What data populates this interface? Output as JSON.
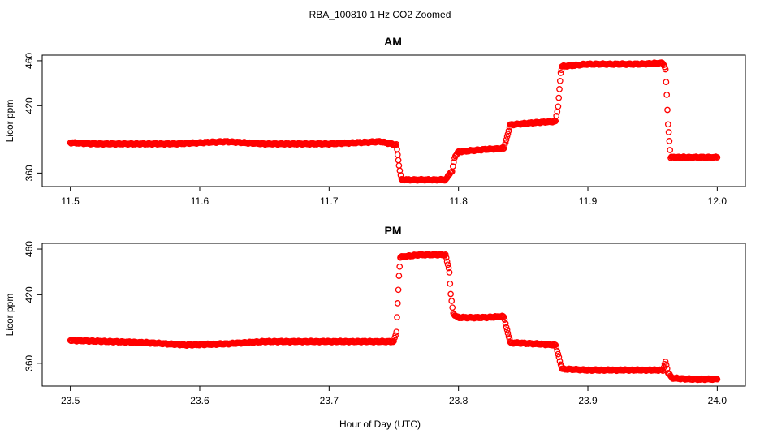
{
  "title": "RBA_100810  1 Hz CO2 Zoomed",
  "xlabel": "Hour of Day (UTC)",
  "colors": {
    "points": "#ff0000",
    "axes": "#000000"
  },
  "chart_data": [
    {
      "type": "scatter",
      "title": "AM",
      "ylabel": "Licor ppm",
      "xlim": [
        11.5,
        12.0
      ],
      "ylim": [
        348,
        465
      ],
      "x_ticks": [
        "11.5",
        "11.6",
        "11.7",
        "11.8",
        "11.9",
        "12.0"
      ],
      "y_ticks": [
        "360",
        "420",
        "460"
      ],
      "series": [
        {
          "x": [
            11.5,
            11.52,
            11.55,
            11.58,
            11.6,
            11.62,
            11.65,
            11.68,
            11.7,
            11.72,
            11.74,
            11.752,
            11.753,
            11.754,
            11.756,
            11.77,
            11.79,
            11.795,
            11.797,
            11.8,
            11.82,
            11.835,
            11.837,
            11.84,
            11.86,
            11.875,
            11.877,
            11.878,
            11.879,
            11.88,
            11.9,
            11.92,
            11.94,
            11.958,
            11.96,
            11.961,
            11.962,
            11.963,
            11.964,
            11.98,
            12.0
          ],
          "y": [
            387,
            386,
            386,
            386,
            387,
            388,
            386,
            386,
            386,
            387,
            388,
            385,
            377,
            366,
            354,
            354,
            354,
            362,
            374,
            379,
            381,
            382,
            390,
            403,
            405,
            406,
            419,
            435,
            449,
            455,
            457,
            457,
            457,
            458,
            453,
            429,
            404,
            388,
            374,
            374,
            374
          ]
        }
      ]
    },
    {
      "type": "scatter",
      "title": "PM",
      "ylabel": "Licor ppm",
      "xlim": [
        23.5,
        24.0
      ],
      "ylim": [
        340,
        465
      ],
      "x_ticks": [
        "23.5",
        "23.6",
        "23.7",
        "23.8",
        "23.9",
        "24.0"
      ],
      "y_ticks": [
        "360",
        "420",
        "460"
      ],
      "series": [
        {
          "x": [
            23.5,
            23.53,
            23.56,
            23.59,
            23.62,
            23.65,
            23.68,
            23.72,
            23.75,
            23.752,
            23.753,
            23.754,
            23.755,
            23.77,
            23.79,
            23.793,
            23.794,
            23.796,
            23.8,
            23.82,
            23.835,
            23.837,
            23.84,
            23.86,
            23.875,
            23.877,
            23.879,
            23.88,
            23.9,
            23.93,
            23.958,
            23.96,
            23.962,
            23.965,
            23.98,
            24.0
          ],
          "y": [
            380,
            379,
            378,
            376,
            377,
            379,
            379,
            379,
            379,
            387,
            413,
            436,
            453,
            455,
            455,
            440,
            420,
            403,
            400,
            400,
            401,
            392,
            378,
            377,
            376,
            368,
            359,
            355,
            354,
            354,
            354,
            362,
            352,
            347,
            346,
            346
          ]
        }
      ]
    }
  ]
}
